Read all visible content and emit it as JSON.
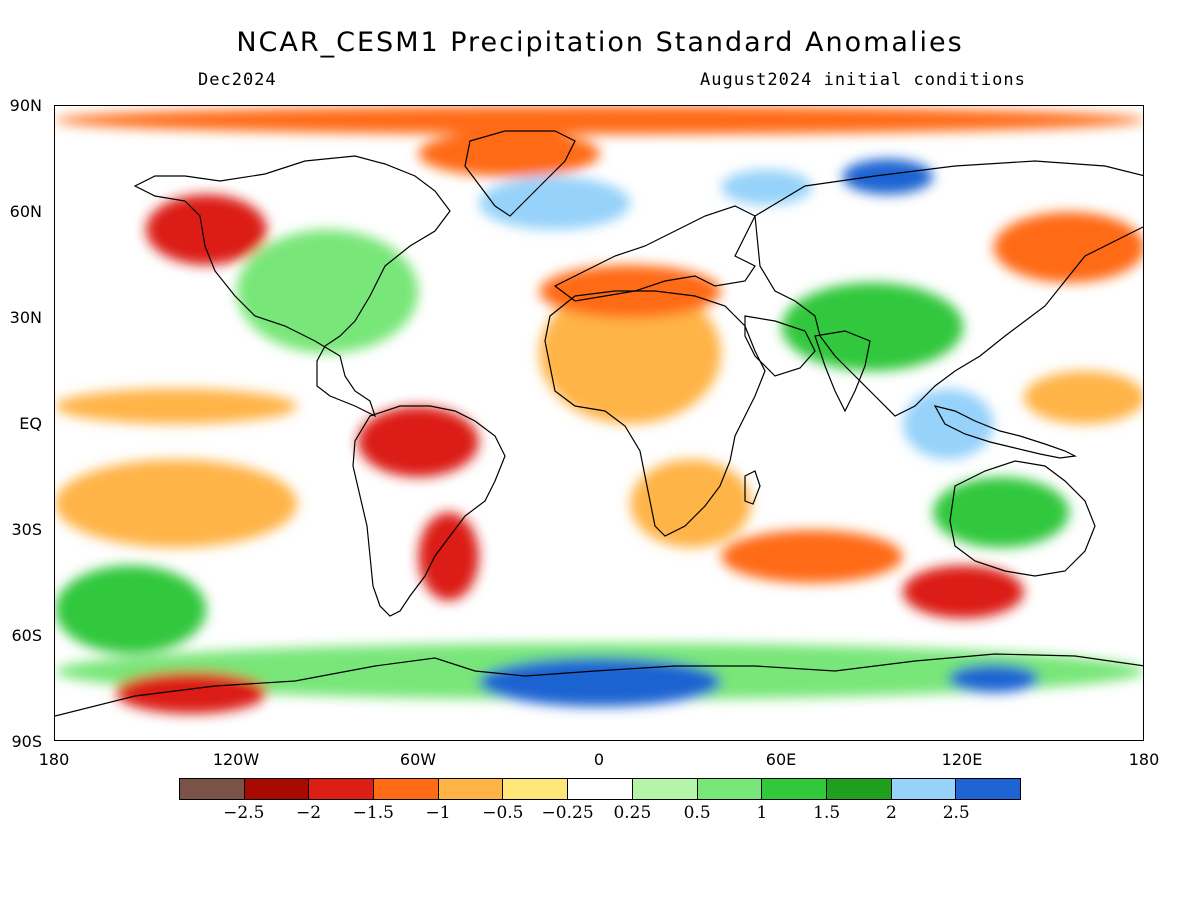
{
  "title": "NCAR_CESM1 Precipitation Standard Anomalies",
  "subtitle_left": "Dec2024",
  "subtitle_right": "August2024 initial conditions",
  "lat_labels": [
    "90N",
    "60N",
    "30N",
    "EQ",
    "30S",
    "60S",
    "90S"
  ],
  "lon_labels": [
    "180",
    "120W",
    "60W",
    "0",
    "60E",
    "120E",
    "180"
  ],
  "colorbar": {
    "colors": [
      "#7a5248",
      "#a80a00",
      "#dc1e14",
      "#ff6a14",
      "#ffb446",
      "#ffe678",
      "#ffffff",
      "#b4f5a8",
      "#78e678",
      "#32c83c",
      "#1ea01e",
      "#96d2fa",
      "#1e64d2"
    ],
    "labels": [
      "-2.5",
      "-2",
      "-1.5",
      "-1",
      "-0.5",
      "-0.25",
      "0.25",
      "0.5",
      "1",
      "1.5",
      "2",
      "2.5"
    ],
    "label_display": [
      "−2.5",
      "−2",
      "−1.5",
      "−1",
      "−0.5",
      "−0.25",
      "0.25",
      "0.5",
      "1",
      "1.5",
      "2",
      "2.5"
    ]
  },
  "map_data": {
    "projection": "equirectangular",
    "lon_range": [
      -180,
      180
    ],
    "lat_range": [
      -90,
      90
    ],
    "regions": [
      {
        "lon": [
          -180,
          180
        ],
        "lat": [
          82,
          90
        ],
        "value": -1.2
      },
      {
        "lon": [
          -180,
          180
        ],
        "lat": [
          -78,
          -62
        ],
        "value": 0.8
      },
      {
        "lon": [
          -40,
          40
        ],
        "lat": [
          -80,
          -66
        ],
        "value": 2.6
      },
      {
        "lon": [
          115,
          145
        ],
        "lat": [
          -76,
          -68
        ],
        "value": 2.5
      },
      {
        "lon": [
          -160,
          -110
        ],
        "lat": [
          -82,
          -70
        ],
        "value": -1.8
      },
      {
        "lon": [
          -180,
          -100
        ],
        "lat": [
          0,
          10
        ],
        "value": -0.7
      },
      {
        "lon": [
          -180,
          -100
        ],
        "lat": [
          -35,
          -10
        ],
        "value": -0.8
      },
      {
        "lon": [
          -80,
          -40
        ],
        "lat": [
          -15,
          5
        ],
        "value": -2.0
      },
      {
        "lon": [
          -60,
          -40
        ],
        "lat": [
          -50,
          -25
        ],
        "value": -1.6
      },
      {
        "lon": [
          -20,
          40
        ],
        "lat": [
          0,
          40
        ],
        "value": -0.8
      },
      {
        "lon": [
          10,
          50
        ],
        "lat": [
          -35,
          -10
        ],
        "value": -1.0
      },
      {
        "lon": [
          -20,
          40
        ],
        "lat": [
          30,
          45
        ],
        "value": -1.4
      },
      {
        "lon": [
          -40,
          10
        ],
        "lat": [
          55,
          70
        ],
        "value": 2.3
      },
      {
        "lon": [
          40,
          70
        ],
        "lat": [
          62,
          72
        ],
        "value": 2.4
      },
      {
        "lon": [
          80,
          110
        ],
        "lat": [
          65,
          75
        ],
        "value": 2.5
      },
      {
        "lon": [
          -150,
          -110
        ],
        "lat": [
          45,
          65
        ],
        "value": -1.6
      },
      {
        "lon": [
          -120,
          -60
        ],
        "lat": [
          20,
          55
        ],
        "value": 0.7
      },
      {
        "lon": [
          -60,
          0
        ],
        "lat": [
          70,
          83
        ],
        "value": -1.5
      },
      {
        "lon": [
          100,
          130
        ],
        "lat": [
          -10,
          10
        ],
        "value": 2.2
      },
      {
        "lon": [
          40,
          100
        ],
        "lat": [
          -45,
          -30
        ],
        "value": -1.5
      },
      {
        "lon": [
          100,
          140
        ],
        "lat": [
          -55,
          -40
        ],
        "value": -2.0
      },
      {
        "lon": [
          110,
          155
        ],
        "lat": [
          -35,
          -15
        ],
        "value": 1.0
      },
      {
        "lon": [
          140,
          180
        ],
        "lat": [
          0,
          15
        ],
        "value": -0.7
      },
      {
        "lon": [
          60,
          120
        ],
        "lat": [
          15,
          40
        ],
        "value": 1.2
      },
      {
        "lon": [
          130,
          180
        ],
        "lat": [
          40,
          60
        ],
        "value": -1.4
      },
      {
        "lon": [
          -180,
          -130
        ],
        "lat": [
          -65,
          -40
        ],
        "value": 1.2
      }
    ]
  }
}
